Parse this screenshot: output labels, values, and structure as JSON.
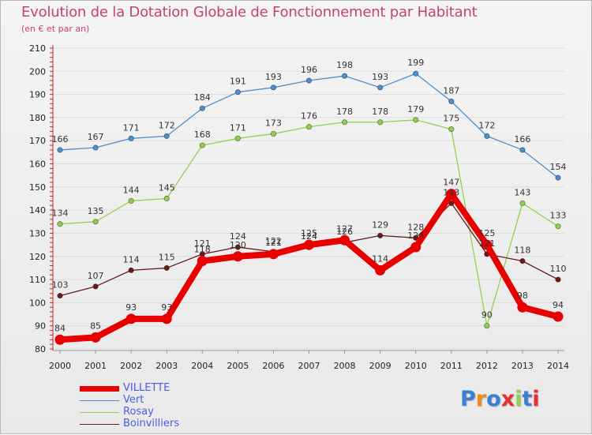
{
  "header": {
    "title": "Evolution de la Dotation Globale de Fonctionnement par Habitant",
    "subtitle": "(en € et par an)"
  },
  "chart_data": {
    "type": "line",
    "title": "Evolution de la Dotation Globale de Fonctionnement par Habitant",
    "subtitle": "(en € et par an)",
    "xlabel": "",
    "ylabel": "",
    "ylim": [
      80,
      210
    ],
    "yticks": [
      80,
      90,
      100,
      110,
      120,
      130,
      140,
      150,
      160,
      170,
      180,
      190,
      200,
      210
    ],
    "grid": "horizontal",
    "legend": "bottom-left",
    "x": [
      "2000",
      "2001",
      "2002",
      "2003",
      "2004",
      "2005",
      "2006",
      "2007",
      "2008",
      "2009",
      "2010",
      "2011",
      "2012",
      "2013",
      "2014"
    ],
    "series": [
      {
        "name": "Vert",
        "color": "#4a8fd0",
        "values": [
          166,
          167,
          171,
          172,
          184,
          191,
          193,
          196,
          198,
          193,
          199,
          187,
          172,
          166,
          154
        ]
      },
      {
        "name": "Rosay",
        "color": "#8fd14f",
        "values": [
          134,
          135,
          144,
          145,
          168,
          171,
          173,
          176,
          178,
          178,
          179,
          175,
          90,
          143,
          133
        ]
      },
      {
        "name": "Boinvilliers",
        "color": "#6b1a1a",
        "values": [
          103,
          107,
          114,
          115,
          121,
          124,
          122,
          124,
          126,
          129,
          128,
          143,
          121,
          118,
          110
        ]
      },
      {
        "name": "VILLETTE",
        "color": "#e80000",
        "values": [
          84,
          85,
          93,
          93,
          118,
          120,
          121,
          125,
          127,
          114,
          124,
          147,
          125,
          98,
          94
        ]
      }
    ]
  },
  "legend": {
    "items": [
      {
        "label": "VILLETTE",
        "color": "#e80000"
      },
      {
        "label": "Vert",
        "color": "#4a8fd0"
      },
      {
        "label": "Rosay",
        "color": "#8fd14f"
      },
      {
        "label": "Boinvilliers",
        "color": "#6b1a1a"
      }
    ]
  },
  "logo": {
    "text": "Proxiti",
    "letter_colors": [
      "#3a7fd0",
      "#f08a1c",
      "#3a7fd0",
      "#e83030",
      "#8fd14f",
      "#3a7fd0",
      "#e83030"
    ]
  }
}
